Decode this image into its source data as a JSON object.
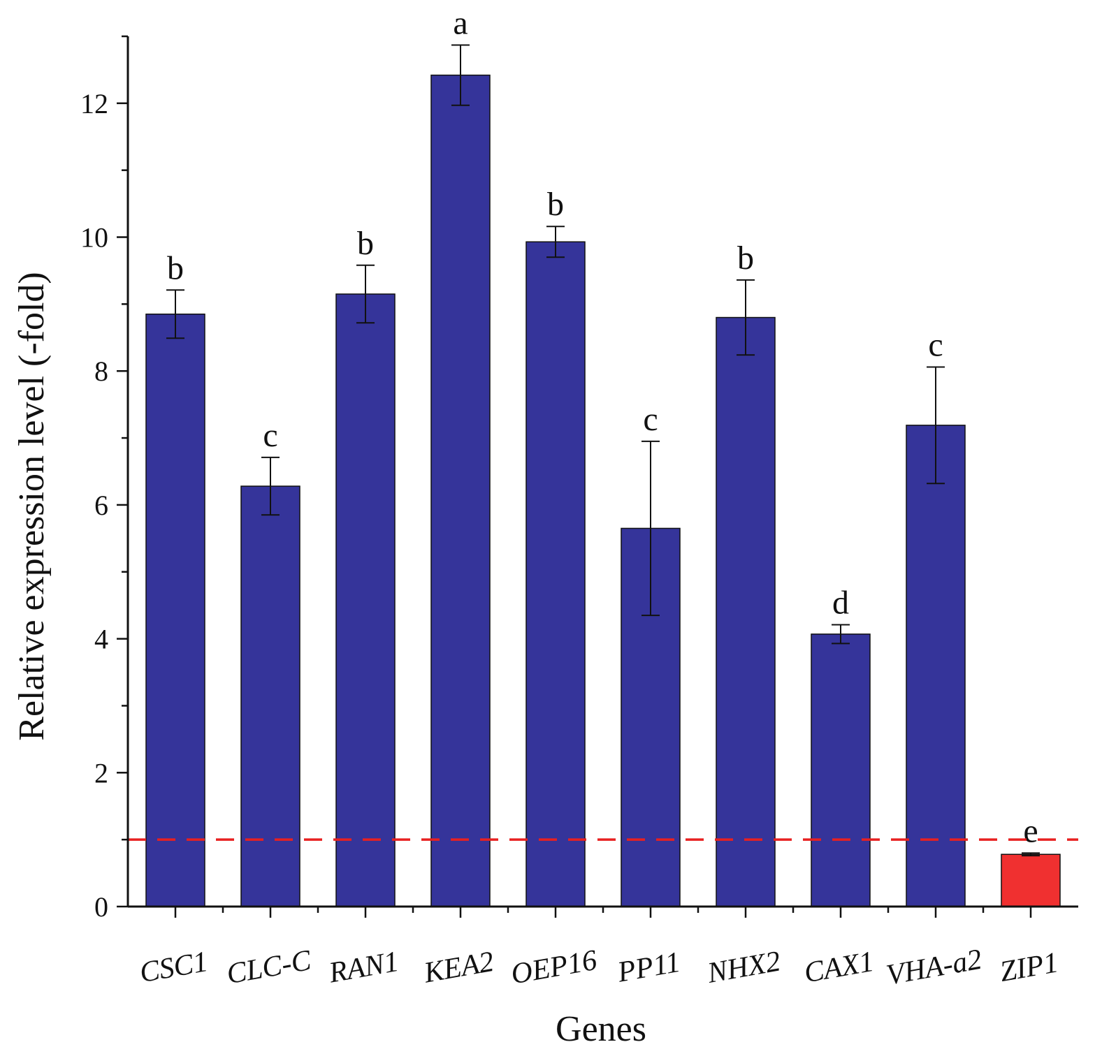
{
  "chart_data": {
    "type": "bar",
    "title": "",
    "xlabel": "Genes",
    "ylabel": "Relative expression level (-fold)",
    "ylim": [
      0,
      13
    ],
    "yticks": [
      0,
      2,
      4,
      6,
      8,
      10,
      12
    ],
    "categories": [
      "CSC1",
      "CLC-C",
      "RAN1",
      "KEA2",
      "OEP16",
      "PP11",
      "NHX2",
      "CAX1",
      "VHA-a2",
      "ZIP1"
    ],
    "values": [
      8.85,
      6.28,
      9.15,
      12.42,
      9.93,
      5.65,
      8.8,
      4.07,
      7.19,
      0.78
    ],
    "errors": [
      0.36,
      0.43,
      0.43,
      0.45,
      0.23,
      1.3,
      0.56,
      0.14,
      0.87,
      0.02
    ],
    "significance": [
      "b",
      "c",
      "b",
      "a",
      "b",
      "c",
      "b",
      "d",
      "c",
      "e"
    ],
    "bar_colors": [
      "#35349a",
      "#35349a",
      "#35349a",
      "#35349a",
      "#35349a",
      "#35349a",
      "#35349a",
      "#35349a",
      "#35349a",
      "#f03030"
    ],
    "reference_line": {
      "value": 1,
      "color": "#e82020",
      "style": "dashed"
    },
    "grid": false,
    "legend": "none"
  }
}
